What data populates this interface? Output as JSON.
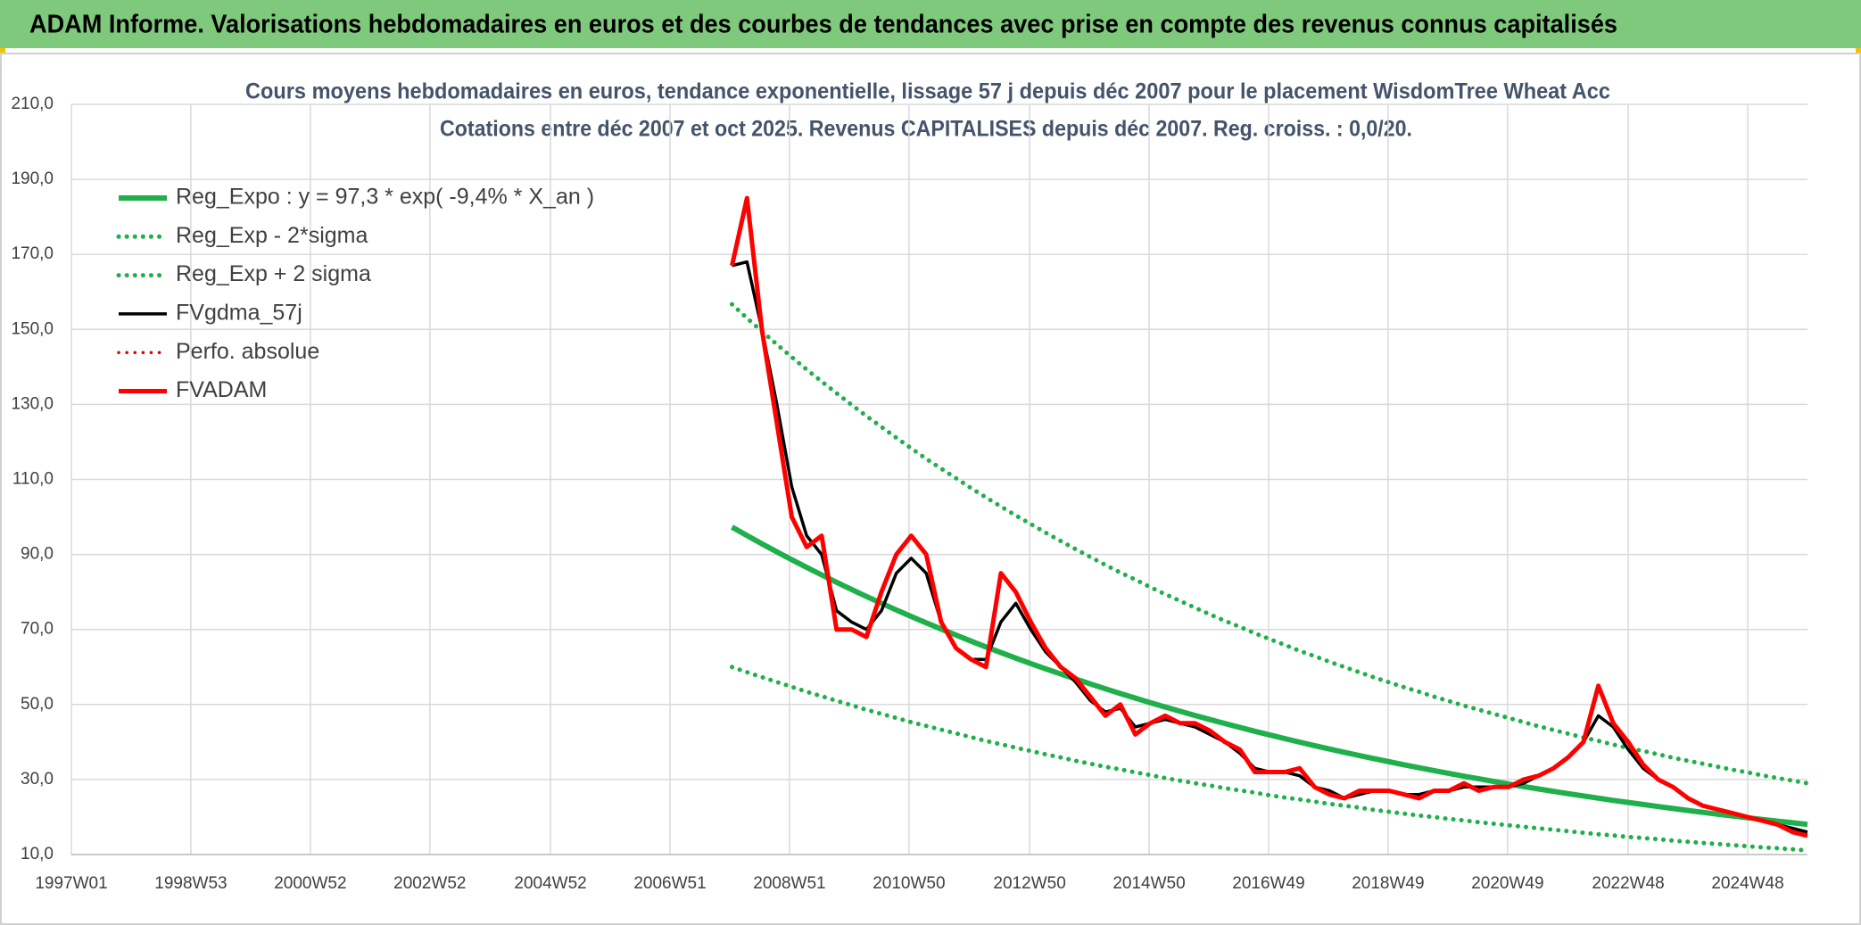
{
  "header": {
    "title": "ADAM Informe. Valorisations hebdomadaires en euros et des courbes de tendances avec prise en compte des revenus connus capitalisés"
  },
  "chart_data": {
    "type": "line",
    "title": [
      "Cours moyens hebdomadaires en euros, tendance exponentielle, lissage 57 j depuis déc 2007 pour le placement WisdomTree Wheat Acc",
      "Cotations entre déc 2007 et oct 2025. Revenus CAPITALISES depuis déc 2007. Reg. croiss. : 0,0/20."
    ],
    "xlim": [
      0,
      1511
    ],
    "xticks": [
      {
        "value": 0,
        "label": "1997W01"
      },
      {
        "value": 104,
        "label": "1998W53"
      },
      {
        "value": 208,
        "label": "2000W52"
      },
      {
        "value": 312,
        "label": "2002W52"
      },
      {
        "value": 417,
        "label": "2004W52"
      },
      {
        "value": 521,
        "label": "2006W51"
      },
      {
        "value": 625,
        "label": "2008W51"
      },
      {
        "value": 729,
        "label": "2010W50"
      },
      {
        "value": 834,
        "label": "2012W50"
      },
      {
        "value": 938,
        "label": "2014W50"
      },
      {
        "value": 1042,
        "label": "2016W49"
      },
      {
        "value": 1146,
        "label": "2018W49"
      },
      {
        "value": 1250,
        "label": "2020W49"
      },
      {
        "value": 1355,
        "label": "2022W48"
      },
      {
        "value": 1459,
        "label": "2024W48"
      }
    ],
    "ylim": [
      10,
      210
    ],
    "yticks": [
      {
        "value": 10,
        "label": "10,0"
      },
      {
        "value": 30,
        "label": "30,0"
      },
      {
        "value": 50,
        "label": "50,0"
      },
      {
        "value": 70,
        "label": "70,0"
      },
      {
        "value": 90,
        "label": "90,0"
      },
      {
        "value": 110,
        "label": "110,0"
      },
      {
        "value": 130,
        "label": "130,0"
      },
      {
        "value": 150,
        "label": "150,0"
      },
      {
        "value": 170,
        "label": "170,0"
      },
      {
        "value": 190,
        "label": "190,0"
      },
      {
        "value": 210,
        "label": "210,0"
      }
    ],
    "grid": true,
    "legend": "upper left",
    "x": [
      575,
      588,
      601,
      614,
      627,
      640,
      653,
      666,
      679,
      692,
      705,
      718,
      731,
      744,
      757,
      770,
      783,
      796,
      809,
      822,
      835,
      848,
      861,
      874,
      887,
      900,
      913,
      926,
      939,
      952,
      965,
      978,
      991,
      1004,
      1017,
      1030,
      1043,
      1056,
      1069,
      1082,
      1095,
      1108,
      1121,
      1134,
      1147,
      1160,
      1173,
      1186,
      1199,
      1212,
      1225,
      1238,
      1251,
      1264,
      1277,
      1290,
      1303,
      1316,
      1329,
      1342,
      1355,
      1368,
      1381,
      1394,
      1407,
      1420,
      1433,
      1446,
      1459,
      1472,
      1485,
      1498,
      1511
    ],
    "series": [
      {
        "name": "Reg_Expo : y = 97,3 * exp( -9,4% *  X_an )",
        "color": "#1faf4b",
        "style": "solid",
        "values": [
          97.3,
          95.05,
          92.85,
          90.7,
          88.6,
          86.55,
          84.55,
          82.59,
          80.68,
          78.81,
          76.99,
          75.21,
          73.47,
          71.77,
          70.11,
          68.49,
          66.9,
          65.35,
          63.84,
          62.36,
          60.92,
          59.51,
          58.13,
          56.79,
          55.47,
          54.19,
          52.93,
          51.71,
          50.51,
          49.34,
          48.2,
          47.08,
          45.99,
          44.93,
          43.89,
          42.87,
          41.88,
          40.91,
          39.96,
          39.04,
          38.13,
          37.25,
          36.39,
          35.55,
          34.73,
          33.92,
          33.14,
          32.37,
          31.62,
          30.89,
          30.18,
          29.48,
          28.8,
          28.13,
          27.48,
          26.84,
          26.22,
          25.62,
          25.02,
          24.44,
          23.88,
          23.33,
          22.79,
          22.26,
          21.74,
          21.24,
          20.75,
          20.27,
          19.8,
          19.34,
          18.89,
          18.46,
          18.03
        ]
      },
      {
        "name": "Reg_Exp - 2*sigma",
        "color": "#1faf4b",
        "style": "dotted",
        "values": [
          60.0,
          58.6,
          57.3,
          56.0,
          54.7,
          53.4,
          52.2,
          51.0,
          49.8,
          48.6,
          47.5,
          46.4,
          45.3,
          44.3,
          43.3,
          42.3,
          41.3,
          40.3,
          39.4,
          38.5,
          37.6,
          36.7,
          35.9,
          35.0,
          34.2,
          33.4,
          32.7,
          31.9,
          31.2,
          30.4,
          29.7,
          29.0,
          28.4,
          27.7,
          27.1,
          26.5,
          25.8,
          25.2,
          24.7,
          24.1,
          23.5,
          23.0,
          22.5,
          21.9,
          21.4,
          20.9,
          20.4,
          20.0,
          19.5,
          19.1,
          18.6,
          18.2,
          17.8,
          17.4,
          17.0,
          16.6,
          16.2,
          15.8,
          15.4,
          15.1,
          14.7,
          14.4,
          14.1,
          13.7,
          13.4,
          13.1,
          12.8,
          12.5,
          12.2,
          11.9,
          11.7,
          11.4,
          11.1
        ]
      },
      {
        "name": "Reg_Exp + 2 sigma",
        "color": "#1faf4b",
        "style": "dotted",
        "values": [
          156.7,
          153.0,
          149.5,
          146.0,
          142.6,
          139.3,
          136.1,
          133.0,
          129.9,
          126.9,
          124.0,
          121.1,
          118.3,
          115.5,
          112.9,
          110.3,
          107.7,
          105.2,
          102.8,
          100.4,
          98.1,
          95.8,
          93.6,
          91.4,
          89.3,
          87.2,
          85.2,
          83.3,
          81.3,
          79.4,
          77.6,
          75.8,
          74.0,
          72.3,
          70.7,
          69.0,
          67.4,
          65.9,
          64.3,
          62.9,
          61.4,
          60.0,
          58.6,
          57.2,
          55.9,
          54.6,
          53.4,
          52.1,
          50.9,
          49.7,
          48.6,
          47.5,
          46.4,
          45.3,
          44.2,
          43.2,
          42.2,
          41.2,
          40.3,
          39.3,
          38.4,
          37.6,
          36.7,
          35.8,
          35.0,
          34.2,
          33.4,
          32.6,
          31.9,
          31.1,
          30.4,
          29.7,
          29.0
        ]
      },
      {
        "name": "FVgdma_57j",
        "color": "#000000",
        "style": "solid",
        "values": [
          167,
          168,
          150,
          130,
          108,
          95,
          90,
          75,
          72,
          70,
          75,
          85,
          89,
          85,
          72,
          65,
          62,
          62,
          72,
          77,
          70,
          64,
          60,
          56,
          51,
          48,
          49,
          44,
          45,
          46,
          45,
          44,
          42,
          40,
          37,
          33,
          32,
          32,
          31,
          28,
          27,
          25,
          26,
          27,
          27,
          26,
          26,
          27,
          27,
          28,
          28,
          28,
          28,
          29,
          31,
          33,
          36,
          40,
          47,
          44,
          38,
          33,
          30,
          28,
          25,
          23,
          22,
          21,
          20,
          19,
          18,
          17,
          16
        ]
      },
      {
        "name": "Perfo. absolue",
        "color": "#e00000",
        "style": "dotted",
        "values": [
          null,
          null,
          null,
          null,
          null,
          null,
          null,
          null,
          null,
          null,
          null,
          null,
          null,
          null,
          null,
          null,
          null,
          null,
          null,
          null,
          null,
          null,
          null,
          null,
          null,
          null,
          null,
          null,
          null,
          null,
          null,
          null,
          null,
          null,
          null,
          null,
          null,
          null,
          null,
          null,
          null,
          null,
          null,
          null,
          null,
          null,
          null,
          null,
          null,
          null,
          null,
          null,
          null,
          null,
          null,
          null,
          null,
          null,
          null,
          null,
          null,
          null,
          null,
          null,
          null,
          null,
          null,
          null,
          null,
          null,
          null,
          null,
          null
        ]
      },
      {
        "name": "FVADAM",
        "color": "#ff0000",
        "style": "solid",
        "values": [
          167,
          185,
          150,
          125,
          100,
          92,
          95,
          70,
          70,
          68,
          80,
          90,
          95,
          90,
          72,
          65,
          62,
          60,
          85,
          80,
          72,
          65,
          60,
          57,
          52,
          47,
          50,
          42,
          45,
          47,
          45,
          45,
          43,
          40,
          38,
          32,
          32,
          32,
          33,
          28,
          26,
          25,
          27,
          27,
          27,
          26,
          25,
          27,
          27,
          29,
          27,
          28,
          28,
          30,
          31,
          33,
          36,
          40,
          55,
          45,
          40,
          34,
          30,
          28,
          25,
          23,
          22,
          21,
          20,
          19,
          18,
          16,
          15
        ]
      }
    ]
  }
}
